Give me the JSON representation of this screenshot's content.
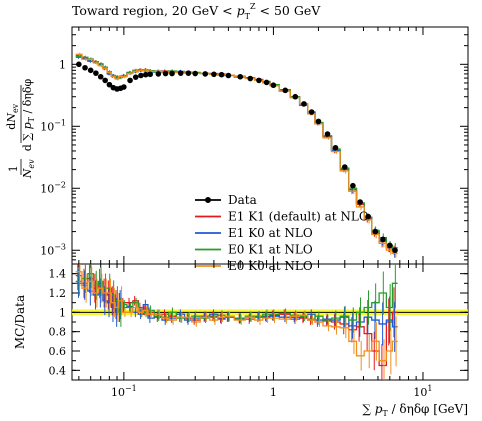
{
  "chart_data": [
    {
      "type": "line",
      "panel": "main",
      "title": "Toward region, 20 GeV < p_T^Z < 50 GeV",
      "ylabel": "1/N_ev dN_ev / d∑p_T/dηdφ",
      "xscale": "log",
      "yscale": "log",
      "xlim": [
        0.045,
        20
      ],
      "ylim": [
        0.0006,
        4
      ],
      "y_ticks": [
        {
          "value": 1,
          "label": "1"
        },
        {
          "value": 0.1,
          "label": "10^-1"
        },
        {
          "value": 0.01,
          "label": "10^-2"
        },
        {
          "value": 0.001,
          "label": "10^-3"
        }
      ],
      "x": [
        0.05,
        0.055,
        0.06,
        0.065,
        0.07,
        0.075,
        0.08,
        0.085,
        0.09,
        0.095,
        0.1,
        0.11,
        0.12,
        0.13,
        0.14,
        0.15,
        0.17,
        0.19,
        0.21,
        0.24,
        0.27,
        0.3,
        0.35,
        0.4,
        0.45,
        0.5,
        0.6,
        0.7,
        0.8,
        0.9,
        1.0,
        1.2,
        1.4,
        1.6,
        1.8,
        2.0,
        2.3,
        2.6,
        3.0,
        3.4,
        3.8,
        4.3,
        4.8,
        5.4,
        6.0,
        6.5
      ],
      "series": [
        {
          "name": "Data",
          "color": "#000000",
          "style": "points",
          "values": [
            1.0,
            0.88,
            0.8,
            0.72,
            0.63,
            0.55,
            0.47,
            0.42,
            0.4,
            0.41,
            0.43,
            0.55,
            0.62,
            0.66,
            0.68,
            0.69,
            0.7,
            0.71,
            0.71,
            0.72,
            0.72,
            0.71,
            0.7,
            0.69,
            0.68,
            0.66,
            0.63,
            0.59,
            0.55,
            0.51,
            0.46,
            0.38,
            0.3,
            0.23,
            0.17,
            0.12,
            0.075,
            0.045,
            0.022,
            0.011,
            0.006,
            0.0035,
            0.002,
            0.0015,
            0.0012,
            0.001
          ]
        },
        {
          "name": "E1 K1 (default) at NLO",
          "color": "#e41a1c",
          "style": "step",
          "values": [
            1.4,
            1.28,
            1.18,
            1.1,
            0.98,
            0.85,
            0.72,
            0.64,
            0.62,
            0.62,
            0.64,
            0.72,
            0.78,
            0.82,
            0.8,
            0.78,
            0.76,
            0.78,
            0.77,
            0.76,
            0.75,
            0.73,
            0.72,
            0.7,
            0.69,
            0.67,
            0.64,
            0.6,
            0.57,
            0.52,
            0.47,
            0.38,
            0.3,
            0.22,
            0.16,
            0.11,
            0.068,
            0.04,
            0.02,
            0.009,
            0.0055,
            0.0032,
            0.0019,
            0.0013,
            0.0011,
            0.001
          ]
        },
        {
          "name": "E1 K0 at NLO",
          "color": "#1f58d6",
          "style": "step",
          "values": [
            1.3,
            1.25,
            1.12,
            1.08,
            1.0,
            0.88,
            0.7,
            0.66,
            0.6,
            0.63,
            0.66,
            0.74,
            0.76,
            0.79,
            0.82,
            0.75,
            0.78,
            0.74,
            0.75,
            0.77,
            0.73,
            0.72,
            0.71,
            0.71,
            0.67,
            0.66,
            0.62,
            0.6,
            0.56,
            0.51,
            0.46,
            0.37,
            0.29,
            0.22,
            0.17,
            0.11,
            0.07,
            0.041,
            0.021,
            0.0095,
            0.0057,
            0.0034,
            0.002,
            0.0014,
            0.0011,
            0.0009
          ]
        },
        {
          "name": "E0 K1 at NLO",
          "color": "#2a9a2a",
          "style": "step",
          "values": [
            1.35,
            1.3,
            1.22,
            1.1,
            1.02,
            0.9,
            0.76,
            0.66,
            0.63,
            0.61,
            0.65,
            0.73,
            0.8,
            0.8,
            0.79,
            0.79,
            0.75,
            0.76,
            0.78,
            0.74,
            0.74,
            0.74,
            0.71,
            0.69,
            0.7,
            0.66,
            0.63,
            0.61,
            0.56,
            0.53,
            0.47,
            0.39,
            0.3,
            0.23,
            0.16,
            0.115,
            0.07,
            0.043,
            0.021,
            0.01,
            0.0058,
            0.0034,
            0.0021,
            0.0016,
            0.0012,
            0.0011
          ]
        },
        {
          "name": "E0 K0 at NLO",
          "color": "#f28e1c",
          "style": "step",
          "values": [
            1.45,
            1.2,
            1.2,
            1.05,
            0.95,
            0.86,
            0.74,
            0.63,
            0.58,
            0.64,
            0.63,
            0.71,
            0.77,
            0.8,
            0.81,
            0.77,
            0.77,
            0.75,
            0.74,
            0.75,
            0.75,
            0.71,
            0.72,
            0.69,
            0.68,
            0.67,
            0.63,
            0.59,
            0.55,
            0.5,
            0.45,
            0.37,
            0.29,
            0.23,
            0.16,
            0.11,
            0.065,
            0.039,
            0.019,
            0.009,
            0.005,
            0.0031,
            0.0018,
            0.0013,
            0.001,
            0.0009
          ]
        }
      ],
      "legend": [
        "Data",
        "E1 K1 (default) at NLO",
        "E1 K0 at NLO",
        "E0 K1 at NLO",
        "E0 K0 at NLO"
      ],
      "legend_position": "center"
    },
    {
      "type": "line",
      "panel": "ratio",
      "ylabel": "MC/Data",
      "xlabel": "∑p_T/dηdφ [GeV]",
      "xscale": "log",
      "xlim": [
        0.045,
        20
      ],
      "ylim": [
        0.3,
        1.5
      ],
      "y_ticks": [
        {
          "value": 0.4,
          "label": "0.4"
        },
        {
          "value": 0.6,
          "label": "0.6"
        },
        {
          "value": 0.8,
          "label": "0.8"
        },
        {
          "value": 1,
          "label": "1"
        },
        {
          "value": 1.2,
          "label": "1.2"
        },
        {
          "value": 1.4,
          "label": "1.4"
        }
      ],
      "x_ticks": [
        {
          "value": 0.1,
          "label": "10^-1"
        },
        {
          "value": 1,
          "label": "1"
        },
        {
          "value": 10,
          "label": "10^1"
        }
      ],
      "reference_band": {
        "color": "#f5f51c",
        "values": [
          1.0,
          1.0
        ]
      },
      "x": [
        0.05,
        0.055,
        0.06,
        0.065,
        0.07,
        0.075,
        0.08,
        0.085,
        0.09,
        0.095,
        0.1,
        0.11,
        0.12,
        0.13,
        0.14,
        0.15,
        0.17,
        0.19,
        0.21,
        0.24,
        0.27,
        0.3,
        0.35,
        0.4,
        0.45,
        0.5,
        0.6,
        0.7,
        0.8,
        0.9,
        1.0,
        1.2,
        1.4,
        1.6,
        1.8,
        2.0,
        2.3,
        2.6,
        3.0,
        3.4,
        3.8,
        4.3,
        4.8,
        5.4,
        6.0,
        6.5
      ],
      "series": [
        {
          "name": "E1 K1 (default) at NLO",
          "color": "#e41a1c",
          "values": [
            1.38,
            1.3,
            1.35,
            1.25,
            1.3,
            1.2,
            1.18,
            1.12,
            1.08,
            1.05,
            1.1,
            1.1,
            1.12,
            1.05,
            1.02,
            1.0,
            0.95,
            0.98,
            0.96,
            0.95,
            0.94,
            0.92,
            0.95,
            0.96,
            0.94,
            0.95,
            0.94,
            0.93,
            0.95,
            0.96,
            0.97,
            0.98,
            0.95,
            0.94,
            0.92,
            0.9,
            0.91,
            0.9,
            0.88,
            0.82,
            0.85,
            0.78,
            0.6,
            0.45,
            0.9,
            1.0
          ]
        },
        {
          "name": "E1 K0 at NLO",
          "color": "#1f58d6",
          "values": [
            1.3,
            1.28,
            1.22,
            1.18,
            1.2,
            1.12,
            1.1,
            1.05,
            1.0,
            1.08,
            1.05,
            1.06,
            1.0,
            0.98,
            1.08,
            0.94,
            0.98,
            0.92,
            0.94,
            0.98,
            0.92,
            0.94,
            0.96,
            0.98,
            0.93,
            0.96,
            0.93,
            0.95,
            0.96,
            0.95,
            0.96,
            0.95,
            0.93,
            0.95,
            0.98,
            0.92,
            0.93,
            0.92,
            0.95,
            0.86,
            0.9,
            0.95,
            0.92,
            0.88,
            0.92,
            0.85
          ]
        },
        {
          "name": "E0 K1 at NLO",
          "color": "#2a9a2a",
          "values": [
            1.32,
            1.35,
            1.4,
            1.28,
            1.32,
            1.25,
            1.25,
            1.18,
            1.12,
            1.0,
            1.08,
            1.05,
            1.1,
            1.0,
            1.0,
            1.02,
            0.96,
            0.95,
            1.0,
            0.94,
            0.95,
            0.96,
            0.94,
            0.95,
            0.97,
            0.95,
            0.94,
            0.96,
            0.96,
            0.98,
            0.98,
            0.99,
            0.97,
            0.96,
            0.93,
            0.96,
            0.92,
            0.94,
            0.96,
            0.92,
            1.0,
            1.05,
            1.1,
            1.2,
            1.05,
            1.3
          ]
        },
        {
          "name": "E0 K0 at NLO",
          "color": "#f28e1c",
          "values": [
            1.42,
            1.25,
            1.32,
            1.2,
            1.25,
            1.2,
            1.2,
            1.1,
            1.05,
            1.12,
            1.0,
            1.0,
            1.05,
            1.0,
            1.02,
            0.98,
            0.98,
            0.94,
            0.92,
            0.95,
            0.95,
            0.9,
            0.95,
            0.92,
            0.95,
            0.96,
            0.92,
            0.95,
            0.92,
            0.94,
            0.94,
            0.93,
            0.96,
            0.97,
            0.92,
            0.9,
            0.86,
            0.85,
            0.84,
            0.7,
            0.55,
            0.6,
            0.7,
            0.5,
            0.6,
            0.7
          ]
        }
      ]
    }
  ]
}
